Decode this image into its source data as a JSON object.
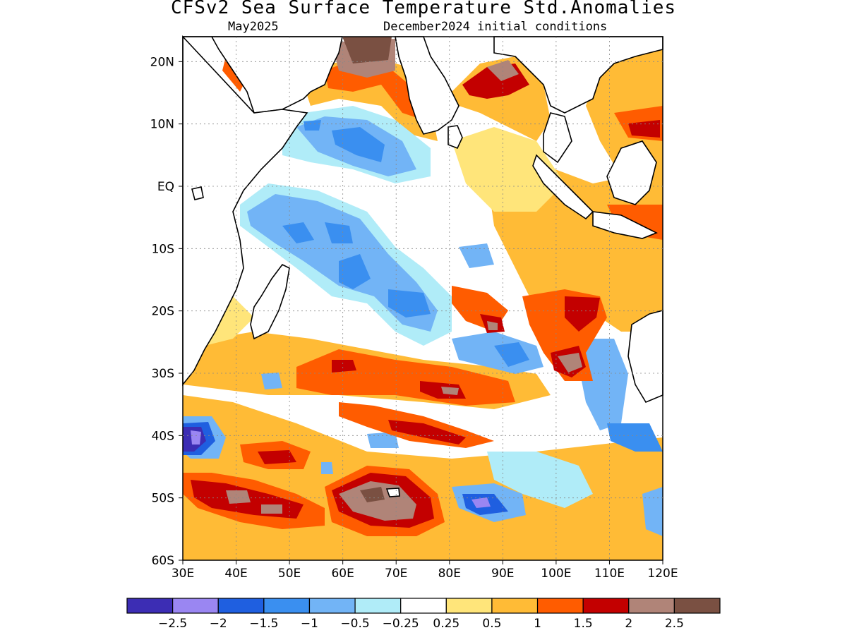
{
  "title": "CFSv2 Sea Surface Temperature Std.Anomalies",
  "subtitle_left": "May2025",
  "subtitle_right": "December2024 initial conditions",
  "lat_ticks": [
    "20N",
    "10N",
    "EQ",
    "10S",
    "20S",
    "30S",
    "40S",
    "50S",
    "60S"
  ],
  "lon_ticks": [
    "30E",
    "40E",
    "50E",
    "60E",
    "70E",
    "80E",
    "90E",
    "100E",
    "110E",
    "120E"
  ],
  "colorbar": {
    "colors": [
      "#3c2db4",
      "#9a86f2",
      "#1f5fe0",
      "#3a8ff0",
      "#72b4f6",
      "#b0ecf8",
      "#ffffff",
      "#ffe57a",
      "#ffbb36",
      "#ff5c00",
      "#c30000",
      "#b08478",
      "#7a5042"
    ],
    "labels": [
      "−2.5",
      "−2",
      "−1.5",
      "−1",
      "−0.5",
      "−0.25",
      "0.25",
      "0.5",
      "1",
      "1.5",
      "2",
      "2.5"
    ]
  },
  "map": {
    "region": "Indian Ocean",
    "lon_range": [
      30,
      120
    ],
    "lat_range": [
      -60,
      24
    ],
    "variable": "SST standardized anomaly",
    "land_color": "#ffffff",
    "coastline_color": "#000000",
    "grid": "dotted"
  }
}
